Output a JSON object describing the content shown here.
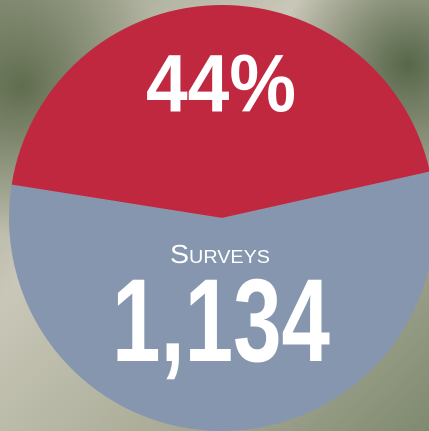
{
  "chart_data": {
    "type": "pie",
    "categories": [
      null,
      null
    ],
    "values": [
      44,
      56
    ],
    "value_labels": [
      "44%",
      null
    ],
    "colors": [
      "#c0283f",
      "#8696ae"
    ],
    "annotations": [
      "Surveys",
      "1,134"
    ]
  }
}
